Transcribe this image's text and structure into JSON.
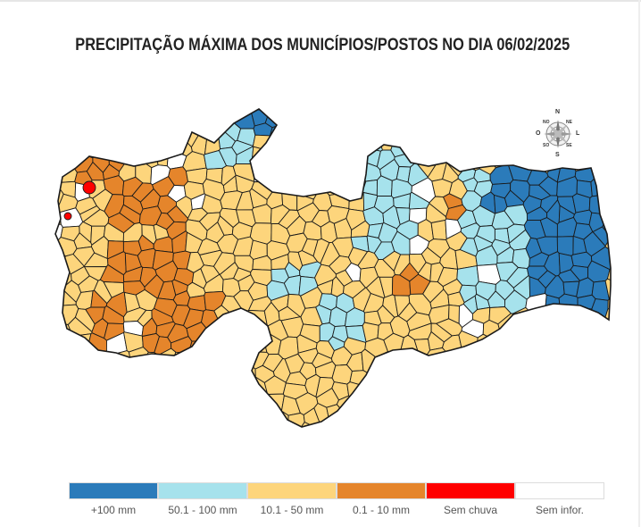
{
  "title": "PRECIPITAÇÃO MÁXIMA DOS MUNICÍPIOS/POSTOS NO DIA 06/02/2025",
  "compass": {
    "n": "N",
    "s": "S",
    "o": "O",
    "l": "L",
    "ne": "NE",
    "no": "NO",
    "se": "SE",
    "so": "SO"
  },
  "colors": {
    "c100": "#2b7bba",
    "c50_100": "#a6e2ec",
    "c10_50": "#fdd57c",
    "c0_10": "#e5852b",
    "sem_chuva": "#ff0000",
    "sem_infor": "#ffffff",
    "border": "#1a1a1a"
  },
  "legend": [
    {
      "label": "+100 mm",
      "color": "#2b7bba"
    },
    {
      "label": "50.1 - 100 mm",
      "color": "#a6e2ec"
    },
    {
      "label": "10.1 - 50 mm",
      "color": "#fdd57c"
    },
    {
      "label": "0.1 - 10 mm",
      "color": "#e5852b"
    },
    {
      "label": "Sem chuva",
      "color": "#ff0000"
    },
    {
      "label": "Sem infor.",
      "color": "#ffffff"
    }
  ]
}
